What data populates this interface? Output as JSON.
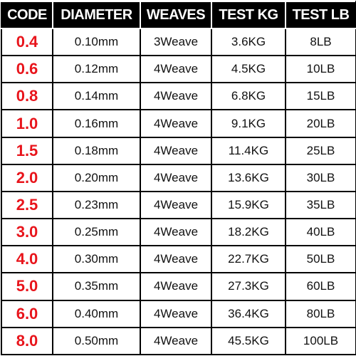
{
  "table": {
    "headers": [
      "CODE",
      "DIAMETER",
      "WEAVES",
      "TEST KG",
      "TEST LB"
    ],
    "rows": [
      [
        "0.4",
        "0.10mm",
        "3Weave",
        "3.6KG",
        "8LB"
      ],
      [
        "0.6",
        "0.12mm",
        "4Weave",
        "4.5KG",
        "10LB"
      ],
      [
        "0.8",
        "0.14mm",
        "4Weave",
        "6.8KG",
        "15LB"
      ],
      [
        "1.0",
        "0.16mm",
        "4Weave",
        "9.1KG",
        "20LB"
      ],
      [
        "1.5",
        "0.18mm",
        "4Weave",
        "11.4KG",
        "25LB"
      ],
      [
        "2.0",
        "0.20mm",
        "4Weave",
        "13.6KG",
        "30LB"
      ],
      [
        "2.5",
        "0.23mm",
        "4Weave",
        "15.9KG",
        "35LB"
      ],
      [
        "3.0",
        "0.25mm",
        "4Weave",
        "18.2KG",
        "40LB"
      ],
      [
        "4.0",
        "0.30mm",
        "4Weave",
        "22.7KG",
        "50LB"
      ],
      [
        "5.0",
        "0.35mm",
        "4Weave",
        "27.3KG",
        "60LB"
      ],
      [
        "6.0",
        "0.40mm",
        "4Weave",
        "36.4KG",
        "80LB"
      ],
      [
        "8.0",
        "0.50mm",
        "4Weave",
        "45.5KG",
        "100LB"
      ]
    ]
  },
  "colors": {
    "header_background": "#000000",
    "header_text": "#ffffff",
    "code_text": "#e8141b",
    "value_text": "#111111",
    "grid": "#000000"
  }
}
